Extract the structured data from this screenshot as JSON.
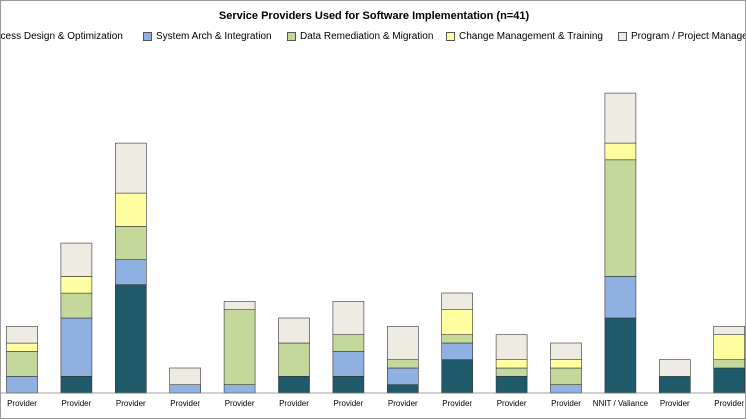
{
  "chart_data": {
    "type": "bar",
    "stacked": true,
    "title": "Service Providers Used for Software Implementation  (n=41)",
    "xlabel": "",
    "ylabel": "",
    "ylim": [
      0,
      36
    ],
    "grid": false,
    "legend_position": "top",
    "categories": [
      "Provider",
      "Provider",
      "Provider",
      "Provider",
      "Provider",
      "Provider",
      "Provider",
      "Provider",
      "Provider",
      "Provider",
      "Provider",
      "NNIT / Valiance",
      "Provider",
      "Provider"
    ],
    "series": [
      {
        "name": "Process Design & Optimization",
        "color": "#1f5a6a",
        "values": [
          0,
          2,
          13,
          0,
          0,
          2,
          2,
          1,
          4,
          2,
          0,
          9,
          2,
          3
        ]
      },
      {
        "name": "System Arch & Integration",
        "color": "#8fb0e0",
        "values": [
          2,
          7,
          3,
          1,
          1,
          0,
          3,
          2,
          2,
          0,
          1,
          5,
          0,
          0
        ]
      },
      {
        "name": "Data Remediation & Migration",
        "color": "#c4d89c",
        "values": [
          3,
          3,
          4,
          0,
          9,
          4,
          2,
          1,
          1,
          1,
          2,
          14,
          0,
          1
        ]
      },
      {
        "name": "Change Management & Training",
        "color": "#fffea0",
        "values": [
          1,
          2,
          4,
          0,
          0,
          0,
          0,
          0,
          3,
          1,
          1,
          2,
          0,
          3
        ]
      },
      {
        "name": "Program / Project Management",
        "color": "#eeebe2",
        "values": [
          2,
          4,
          6,
          2,
          1,
          3,
          4,
          4,
          2,
          3,
          2,
          6,
          2,
          1
        ]
      }
    ]
  }
}
